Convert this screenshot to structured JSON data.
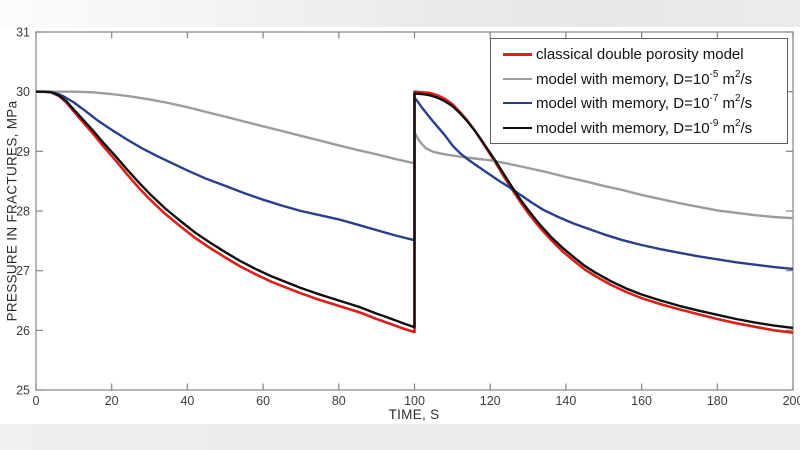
{
  "figure": {
    "background": "#ffffff",
    "top_strip_color": "#e8e7e9",
    "bottom_strip_color": "#ecebed"
  },
  "legend": {
    "items": [
      {
        "pre": "classical double porosity model",
        "exp": "",
        "mid": "",
        "exp2": "",
        "post": ""
      },
      {
        "pre": "model with memory, D=10",
        "exp": "-5",
        "mid": " m",
        "exp2": "2",
        "post": "/s"
      },
      {
        "pre": "model with memory, D=10",
        "exp": "-7",
        "mid": " m",
        "exp2": "2",
        "post": "/s"
      },
      {
        "pre": "model with memory, D=10",
        "exp": "-9",
        "mid": " m",
        "exp2": "2",
        "post": "/s"
      }
    ]
  },
  "chart_data": {
    "type": "line",
    "title": "",
    "xlabel": "TIME, S",
    "ylabel": "PRESSURE IN FRACTURES, MPa",
    "xlim": [
      0,
      200
    ],
    "ylim": [
      25,
      31
    ],
    "xticks": [
      0,
      20,
      40,
      60,
      80,
      100,
      120,
      140,
      160,
      180,
      200
    ],
    "yticks": [
      25,
      26,
      27,
      28,
      29,
      30,
      31
    ],
    "grid": false,
    "legend_position": "top-right",
    "axis_color": "#858585",
    "tick_label_color": "#3d3d3d",
    "series": [
      {
        "name": "classical double porosity model",
        "color": "#dd1f1a",
        "width": 2.6,
        "points": [
          [
            0,
            30
          ],
          [
            2,
            30
          ],
          [
            4,
            29.99
          ],
          [
            6,
            29.93
          ],
          [
            8,
            29.82
          ],
          [
            10,
            29.67
          ],
          [
            12,
            29.52
          ],
          [
            15,
            29.3
          ],
          [
            18,
            29.07
          ],
          [
            21,
            28.85
          ],
          [
            24,
            28.62
          ],
          [
            27,
            28.4
          ],
          [
            30,
            28.2
          ],
          [
            34,
            27.96
          ],
          [
            38,
            27.75
          ],
          [
            42,
            27.55
          ],
          [
            46,
            27.38
          ],
          [
            50,
            27.22
          ],
          [
            54,
            27.07
          ],
          [
            58,
            26.94
          ],
          [
            62,
            26.82
          ],
          [
            66,
            26.72
          ],
          [
            70,
            26.62
          ],
          [
            74,
            26.53
          ],
          [
            78,
            26.45
          ],
          [
            82,
            26.37
          ],
          [
            86,
            26.29
          ],
          [
            90,
            26.19
          ],
          [
            94,
            26.1
          ],
          [
            97,
            26.03
          ],
          [
            100,
            25.97
          ],
          [
            100,
            30.0
          ],
          [
            102,
            29.99
          ],
          [
            104,
            29.98
          ],
          [
            106,
            29.94
          ],
          [
            108,
            29.88
          ],
          [
            110,
            29.79
          ],
          [
            112,
            29.66
          ],
          [
            114,
            29.51
          ],
          [
            116,
            29.34
          ],
          [
            118,
            29.15
          ],
          [
            120,
            28.95
          ],
          [
            122,
            28.75
          ],
          [
            124,
            28.54
          ],
          [
            126,
            28.34
          ],
          [
            128,
            28.15
          ],
          [
            130,
            27.97
          ],
          [
            133,
            27.73
          ],
          [
            136,
            27.52
          ],
          [
            139,
            27.33
          ],
          [
            142,
            27.17
          ],
          [
            145,
            27.02
          ],
          [
            148,
            26.9
          ],
          [
            152,
            26.76
          ],
          [
            156,
            26.64
          ],
          [
            160,
            26.54
          ],
          [
            165,
            26.44
          ],
          [
            170,
            26.35
          ],
          [
            175,
            26.27
          ],
          [
            180,
            26.19
          ],
          [
            185,
            26.12
          ],
          [
            190,
            26.06
          ],
          [
            195,
            26.0
          ],
          [
            200,
            25.96
          ]
        ]
      },
      {
        "name": "model with memory, D=10^-5 m^2/s",
        "color": "#9c9c9c",
        "width": 2.4,
        "points": [
          [
            0,
            30
          ],
          [
            5,
            30
          ],
          [
            10,
            30
          ],
          [
            15,
            29.99
          ],
          [
            20,
            29.96
          ],
          [
            25,
            29.92
          ],
          [
            30,
            29.87
          ],
          [
            35,
            29.81
          ],
          [
            40,
            29.74
          ],
          [
            45,
            29.66
          ],
          [
            50,
            29.58
          ],
          [
            55,
            29.5
          ],
          [
            60,
            29.42
          ],
          [
            65,
            29.34
          ],
          [
            70,
            29.26
          ],
          [
            75,
            29.18
          ],
          [
            80,
            29.1
          ],
          [
            85,
            29.02
          ],
          [
            90,
            28.95
          ],
          [
            95,
            28.87
          ],
          [
            100,
            28.8
          ],
          [
            100,
            29.32
          ],
          [
            101,
            29.2
          ],
          [
            102,
            29.12
          ],
          [
            103,
            29.05
          ],
          [
            105,
            28.99
          ],
          [
            108,
            28.95
          ],
          [
            112,
            28.91
          ],
          [
            116,
            28.88
          ],
          [
            120,
            28.85
          ],
          [
            125,
            28.79
          ],
          [
            130,
            28.72
          ],
          [
            135,
            28.65
          ],
          [
            140,
            28.57
          ],
          [
            145,
            28.5
          ],
          [
            150,
            28.42
          ],
          [
            155,
            28.35
          ],
          [
            160,
            28.27
          ],
          [
            165,
            28.2
          ],
          [
            170,
            28.13
          ],
          [
            175,
            28.07
          ],
          [
            180,
            28.01
          ],
          [
            185,
            27.97
          ],
          [
            190,
            27.93
          ],
          [
            195,
            27.9
          ],
          [
            200,
            27.88
          ]
        ]
      },
      {
        "name": "model with memory, D=10^-7 m^2/s",
        "color": "#28408c",
        "width": 2.4,
        "points": [
          [
            0,
            30
          ],
          [
            3,
            30
          ],
          [
            5,
            29.98
          ],
          [
            7,
            29.93
          ],
          [
            10,
            29.82
          ],
          [
            13,
            29.68
          ],
          [
            16,
            29.53
          ],
          [
            20,
            29.36
          ],
          [
            24,
            29.2
          ],
          [
            28,
            29.05
          ],
          [
            32,
            28.92
          ],
          [
            36,
            28.8
          ],
          [
            40,
            28.68
          ],
          [
            45,
            28.54
          ],
          [
            50,
            28.42
          ],
          [
            55,
            28.3
          ],
          [
            60,
            28.19
          ],
          [
            65,
            28.09
          ],
          [
            70,
            28.0
          ],
          [
            75,
            27.93
          ],
          [
            80,
            27.86
          ],
          [
            85,
            27.77
          ],
          [
            90,
            27.68
          ],
          [
            95,
            27.59
          ],
          [
            100,
            27.51
          ],
          [
            100,
            29.9
          ],
          [
            101,
            29.82
          ],
          [
            102,
            29.73
          ],
          [
            104,
            29.57
          ],
          [
            106,
            29.42
          ],
          [
            108,
            29.27
          ],
          [
            110,
            29.1
          ],
          [
            112,
            28.97
          ],
          [
            114,
            28.87
          ],
          [
            116,
            28.78
          ],
          [
            119,
            28.65
          ],
          [
            122,
            28.52
          ],
          [
            125,
            28.4
          ],
          [
            128,
            28.27
          ],
          [
            131,
            28.14
          ],
          [
            134,
            28.02
          ],
          [
            138,
            27.9
          ],
          [
            142,
            27.79
          ],
          [
            146,
            27.7
          ],
          [
            150,
            27.61
          ],
          [
            155,
            27.51
          ],
          [
            160,
            27.43
          ],
          [
            165,
            27.36
          ],
          [
            170,
            27.3
          ],
          [
            175,
            27.24
          ],
          [
            180,
            27.19
          ],
          [
            185,
            27.14
          ],
          [
            190,
            27.1
          ],
          [
            195,
            27.06
          ],
          [
            200,
            27.03
          ]
        ]
      },
      {
        "name": "model with memory, D=10^-9 m^2/s",
        "color": "#101010",
        "width": 2.4,
        "points": [
          [
            0,
            30
          ],
          [
            2,
            30
          ],
          [
            4,
            29.99
          ],
          [
            6,
            29.94
          ],
          [
            8,
            29.84
          ],
          [
            10,
            29.7
          ],
          [
            12,
            29.56
          ],
          [
            15,
            29.35
          ],
          [
            18,
            29.13
          ],
          [
            21,
            28.92
          ],
          [
            24,
            28.7
          ],
          [
            27,
            28.49
          ],
          [
            30,
            28.29
          ],
          [
            34,
            28.05
          ],
          [
            38,
            27.84
          ],
          [
            42,
            27.64
          ],
          [
            46,
            27.47
          ],
          [
            50,
            27.31
          ],
          [
            54,
            27.16
          ],
          [
            58,
            27.03
          ],
          [
            62,
            26.91
          ],
          [
            66,
            26.81
          ],
          [
            70,
            26.71
          ],
          [
            74,
            26.62
          ],
          [
            78,
            26.54
          ],
          [
            82,
            26.46
          ],
          [
            86,
            26.38
          ],
          [
            90,
            26.28
          ],
          [
            94,
            26.19
          ],
          [
            97,
            26.12
          ],
          [
            100,
            26.05
          ],
          [
            100,
            29.97
          ],
          [
            102,
            29.96
          ],
          [
            104,
            29.94
          ],
          [
            106,
            29.9
          ],
          [
            108,
            29.84
          ],
          [
            110,
            29.76
          ],
          [
            112,
            29.64
          ],
          [
            114,
            29.5
          ],
          [
            116,
            29.34
          ],
          [
            118,
            29.16
          ],
          [
            120,
            28.97
          ],
          [
            122,
            28.78
          ],
          [
            124,
            28.58
          ],
          [
            126,
            28.38
          ],
          [
            128,
            28.19
          ],
          [
            130,
            28.02
          ],
          [
            133,
            27.78
          ],
          [
            136,
            27.57
          ],
          [
            139,
            27.39
          ],
          [
            142,
            27.23
          ],
          [
            145,
            27.08
          ],
          [
            148,
            26.96
          ],
          [
            152,
            26.82
          ],
          [
            156,
            26.7
          ],
          [
            160,
            26.6
          ],
          [
            165,
            26.5
          ],
          [
            170,
            26.41
          ],
          [
            175,
            26.33
          ],
          [
            180,
            26.26
          ],
          [
            185,
            26.19
          ],
          [
            190,
            26.13
          ],
          [
            195,
            26.08
          ],
          [
            200,
            26.04
          ]
        ]
      }
    ]
  }
}
